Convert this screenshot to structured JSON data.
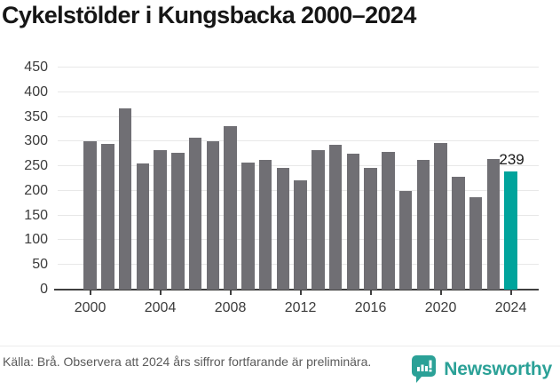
{
  "chart_data": {
    "type": "bar",
    "title": "Cykelstölder i Kungsbacka 2000–2024",
    "categories": [
      2000,
      2001,
      2002,
      2003,
      2004,
      2005,
      2006,
      2007,
      2008,
      2009,
      2010,
      2011,
      2012,
      2013,
      2014,
      2015,
      2016,
      2017,
      2018,
      2019,
      2020,
      2021,
      2022,
      2023,
      2024
    ],
    "values": [
      300,
      295,
      367,
      255,
      282,
      278,
      307,
      301,
      332,
      258,
      263,
      246,
      222,
      283,
      294,
      275,
      246,
      279,
      200,
      262,
      297,
      229,
      188,
      264,
      239
    ],
    "xlabel": "",
    "ylabel": "",
    "ylim": [
      0,
      450
    ],
    "yticks": [
      0,
      50,
      100,
      150,
      200,
      250,
      300,
      350,
      400,
      450
    ],
    "xtick_years": [
      2000,
      2004,
      2008,
      2012,
      2016,
      2020,
      2024
    ],
    "grid": true,
    "legend_position": "none",
    "bar_color": "#706f74",
    "highlight_index": 24,
    "highlight_color": "#00a49c",
    "highlight_value_label": "239"
  },
  "footer": {
    "source_text": "Källa: Brå. Observera att 2024 års siffror fortfarande är preliminära.",
    "brand": "Newsworthy",
    "brand_color": "#2ba197",
    "brand_icon": "newsworthy-speech-bubble-barchart-icon"
  }
}
